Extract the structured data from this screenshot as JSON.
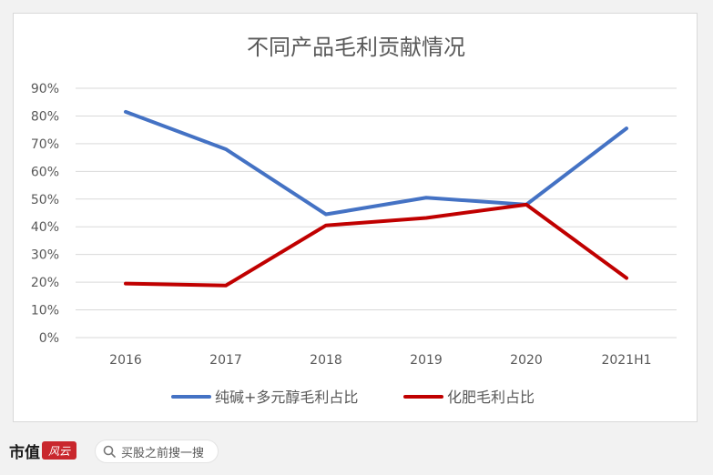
{
  "chart_data": {
    "type": "line",
    "title": "不同产品毛利贡献情况",
    "categories": [
      "2016",
      "2017",
      "2018",
      "2019",
      "2020",
      "2021H1"
    ],
    "y_ticks": [
      "0%",
      "10%",
      "20%",
      "30%",
      "40%",
      "50%",
      "60%",
      "70%",
      "80%",
      "90%"
    ],
    "ylim": [
      0,
      90
    ],
    "grid": true,
    "legend_position": "bottom",
    "series": [
      {
        "name": "纯碱+多元醇毛利占比",
        "color": "#4472c4",
        "values": [
          81.5,
          68,
          44.5,
          50.5,
          48,
          75.5
        ]
      },
      {
        "name": "化肥毛利占比",
        "color": "#c00000",
        "values": [
          19.5,
          18.8,
          40.5,
          43.2,
          48,
          21.5
        ]
      }
    ]
  },
  "footer": {
    "brand": "市值",
    "brand_mark": "风云",
    "search_placeholder": "买股之前搜一搜",
    "search_icon": "search-icon"
  }
}
